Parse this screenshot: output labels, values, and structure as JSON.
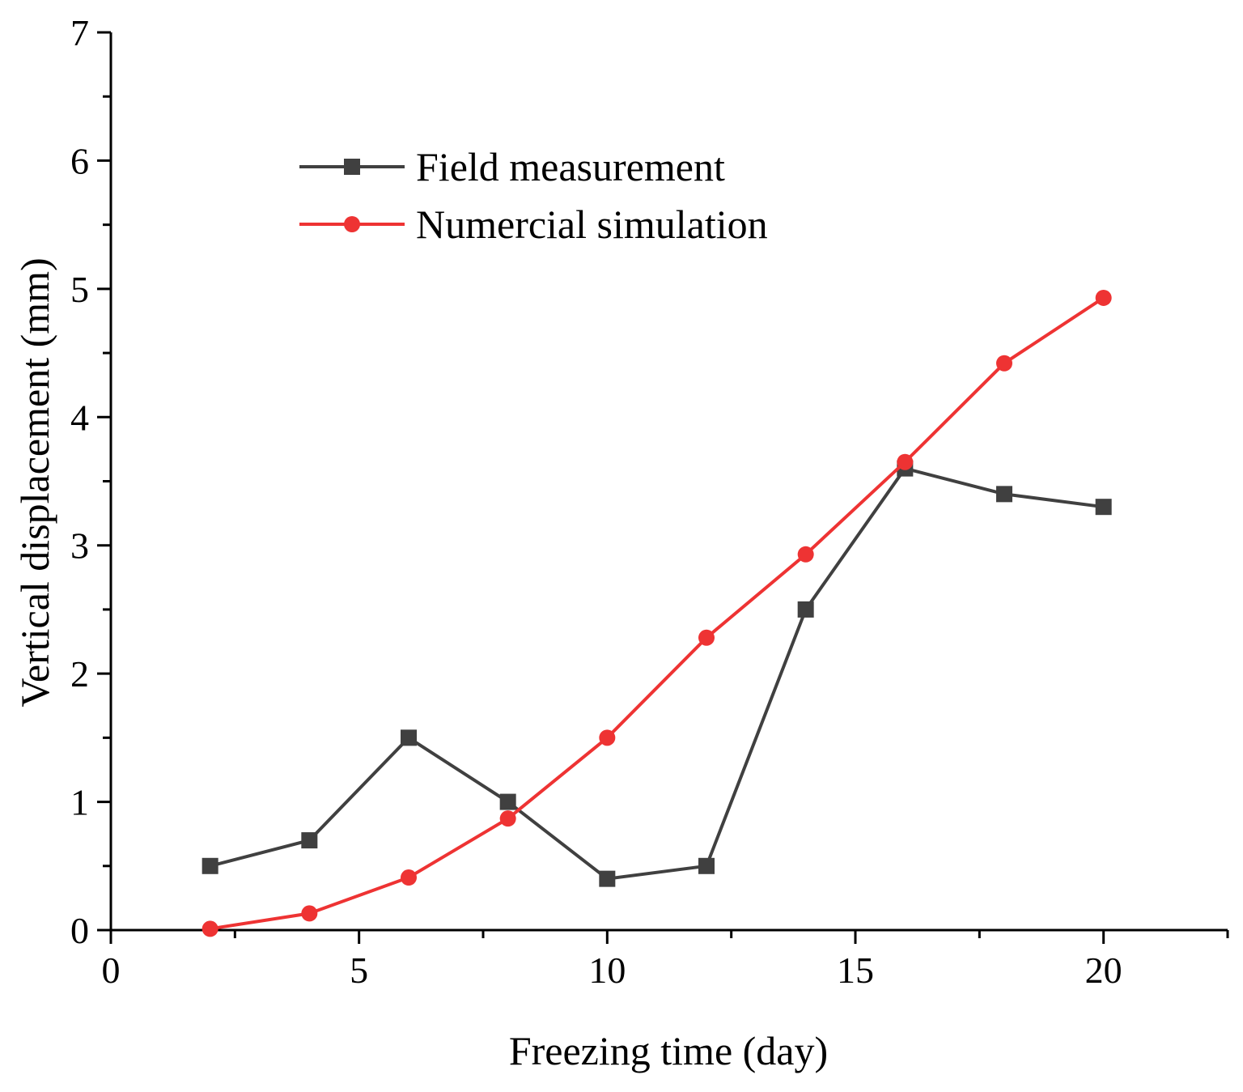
{
  "chart_data": {
    "type": "line",
    "title": "",
    "xlabel": "Freezing time (day)",
    "ylabel": "Vertical displacement (mm)",
    "xlim": [
      0,
      22.5
    ],
    "ylim": [
      0,
      7
    ],
    "x_ticks": [
      0,
      5,
      10,
      15,
      20
    ],
    "x_tick_labels": [
      "0",
      "5",
      "10",
      "15",
      "20"
    ],
    "x_minor_ticks": [
      2.5,
      7.5,
      12.5,
      17.5,
      22.5
    ],
    "y_ticks": [
      0,
      1,
      2,
      3,
      4,
      5,
      6,
      7
    ],
    "y_tick_labels": [
      "0",
      "1",
      "2",
      "3",
      "4",
      "5",
      "6",
      "7"
    ],
    "y_minor_ticks": [
      0.5,
      1.5,
      2.5,
      3.5,
      4.5,
      5.5,
      6.5
    ],
    "grid": false,
    "legend_position": "top-left",
    "series": [
      {
        "name": "Field measurement",
        "marker": "square",
        "color": "#404040",
        "x": [
          2,
          4,
          6,
          8,
          10,
          12,
          14,
          16,
          18,
          20
        ],
        "values": [
          0.5,
          0.7,
          1.5,
          1.0,
          0.4,
          0.5,
          2.5,
          3.6,
          3.4,
          3.3
        ]
      },
      {
        "name": "Numercial simulation",
        "marker": "circle",
        "color": "#ee3333",
        "x": [
          2,
          4,
          6,
          8,
          10,
          12,
          14,
          16,
          18,
          20
        ],
        "values": [
          0.01,
          0.13,
          0.41,
          0.87,
          1.5,
          2.28,
          2.93,
          3.65,
          4.42,
          4.93
        ]
      }
    ]
  }
}
